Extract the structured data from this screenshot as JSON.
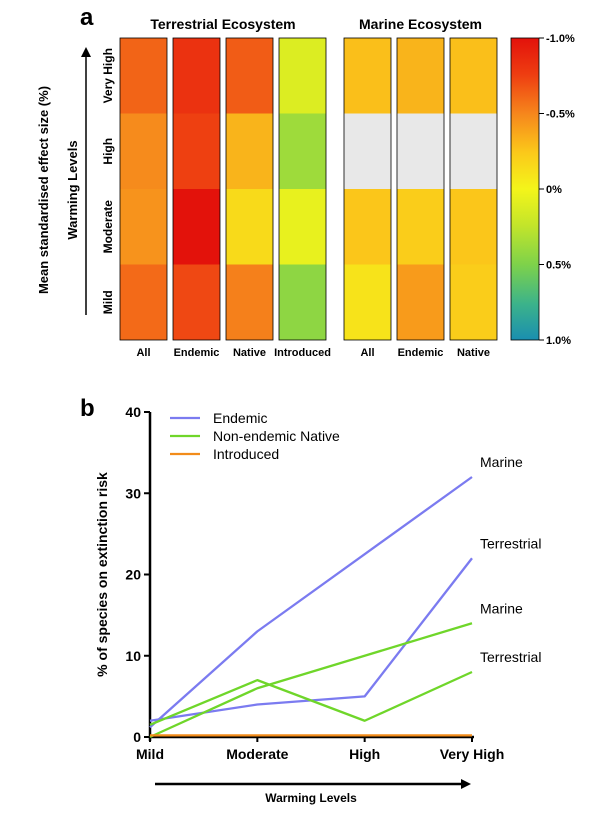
{
  "panel_a": {
    "panel_label": "a",
    "y_title": "Mean standardised effect size (%)",
    "x_title": "",
    "warming_axis_label": "Warming Levels"
  },
  "panel_b": {
    "panel_label": "b"
  },
  "chart_data": [
    {
      "type": "heatmap",
      "title": "",
      "warming_levels": [
        "Very High",
        "High",
        "Moderate",
        "Mild"
      ],
      "groups": [
        {
          "title": "Terrestrial Ecosystem",
          "columns": [
            "All",
            "Endemic",
            "Native",
            "Introduced"
          ],
          "values": [
            [
              -0.62,
              -0.82,
              -0.65,
              0.12
            ],
            [
              -0.48,
              -0.75,
              -0.32,
              0.38
            ],
            [
              -0.45,
              -1.0,
              -0.15,
              0.06
            ],
            [
              -0.6,
              -0.72,
              -0.52,
              0.44
            ]
          ]
        },
        {
          "title": "Marine Ecosystem",
          "columns": [
            "All",
            "Endemic",
            "Native"
          ],
          "values": [
            [
              -0.28,
              -0.32,
              -0.28
            ],
            [
              null,
              null,
              null
            ],
            [
              -0.25,
              -0.22,
              -0.25
            ],
            [
              -0.1,
              -0.42,
              -0.22
            ]
          ]
        }
      ],
      "colorbar": {
        "min": -1.0,
        "max": 1.0,
        "tick_labels": [
          "-1.0%",
          "-0.5%",
          "0%",
          "0.5%",
          "1.0%"
        ],
        "tick_values": [
          -1.0,
          -0.5,
          0.0,
          0.5,
          1.0
        ]
      },
      "missing_color": "#e8e8e8"
    },
    {
      "type": "line",
      "title": "",
      "xlabel": "Warming Levels",
      "ylabel": "% of species on extinction risk",
      "categories": [
        "Mild",
        "Moderate",
        "High",
        "Very High"
      ],
      "ylim": [
        0,
        40
      ],
      "yticks": [
        0,
        10,
        20,
        30,
        40
      ],
      "legend": {
        "placement": "top-left",
        "entries": [
          {
            "label": "Endemic",
            "color": "#7b7bf0"
          },
          {
            "label": "Non-endemic Native",
            "color": "#6fd62a"
          },
          {
            "label": "Introduced",
            "color": "#f28c1a"
          }
        ]
      },
      "series": [
        {
          "group": "Endemic",
          "end_label": "Marine",
          "color": "#7b7bf0",
          "values": [
            1.2,
            13,
            22.5,
            32
          ]
        },
        {
          "group": "Endemic",
          "end_label": "Terrestrial",
          "color": "#7b7bf0",
          "values": [
            2,
            4,
            5,
            22
          ]
        },
        {
          "group": "Non-endemic Native",
          "end_label": "Marine",
          "color": "#6fd62a",
          "values": [
            0,
            6,
            10,
            14
          ]
        },
        {
          "group": "Non-endemic Native",
          "end_label": "Terrestrial",
          "color": "#6fd62a",
          "values": [
            1.5,
            7,
            2,
            8
          ]
        },
        {
          "group": "Introduced",
          "end_label": "",
          "color": "#f28c1a",
          "values": [
            0.2,
            0.2,
            0.2,
            0.2
          ]
        }
      ]
    }
  ]
}
